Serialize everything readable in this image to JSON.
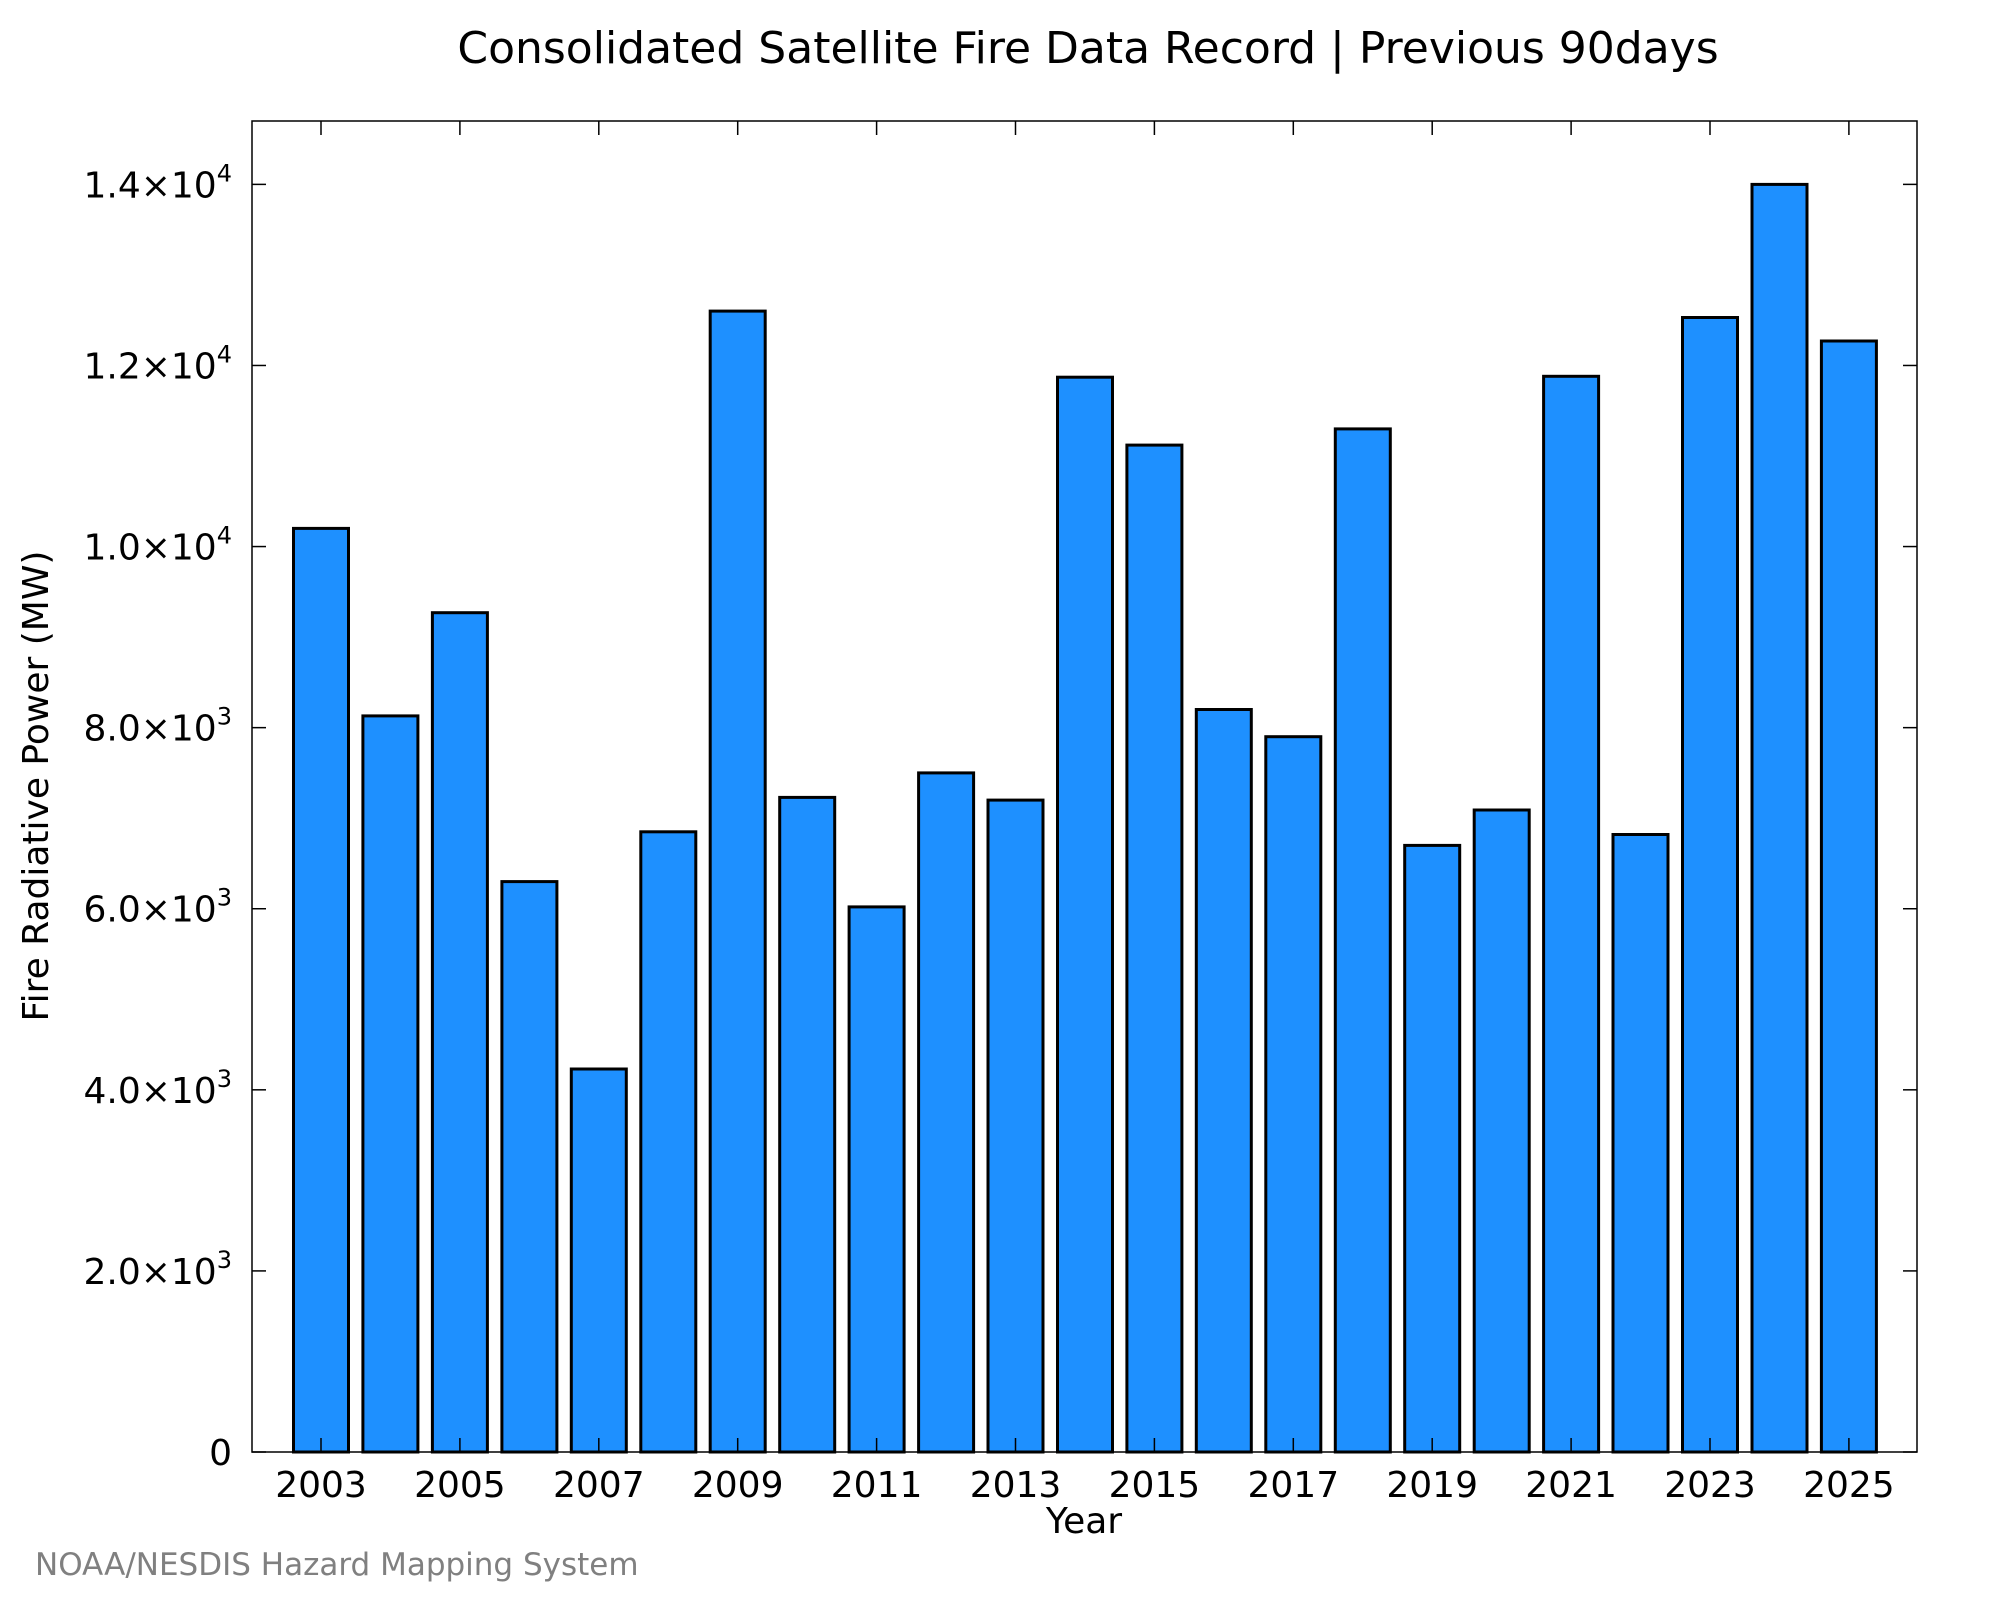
{
  "chart_data": {
    "type": "bar",
    "title": "Consolidated Satellite Fire Data Record | Previous 90days",
    "xlabel": "Year",
    "ylabel": "Fire Radiative Power (MW)",
    "categories": [
      "2003",
      "2004",
      "2005",
      "2006",
      "2007",
      "2008",
      "2009",
      "2010",
      "2011",
      "2012",
      "2013",
      "2014",
      "2015",
      "2016",
      "2017",
      "2018",
      "2019",
      "2020",
      "2021",
      "2022",
      "2023",
      "2024",
      "2025"
    ],
    "values": [
      10200,
      8130,
      9270,
      6300,
      4230,
      6850,
      12600,
      7230,
      6020,
      7500,
      7200,
      11870,
      11120,
      8200,
      7900,
      11300,
      6700,
      7090,
      11880,
      6820,
      12530,
      14000,
      12270
    ],
    "x_tick_labels": [
      "2003",
      "2005",
      "2007",
      "2009",
      "2011",
      "2013",
      "2015",
      "2017",
      "2019",
      "2021",
      "2023",
      "2025"
    ],
    "ylim": [
      0,
      14700
    ],
    "y_ticks": [
      {
        "value": 0,
        "mantissa": "0",
        "exponent": ""
      },
      {
        "value": 2000,
        "mantissa": "2.0×10",
        "exponent": "3"
      },
      {
        "value": 4000,
        "mantissa": "4.0×10",
        "exponent": "3"
      },
      {
        "value": 6000,
        "mantissa": "6.0×10",
        "exponent": "3"
      },
      {
        "value": 8000,
        "mantissa": "8.0×10",
        "exponent": "3"
      },
      {
        "value": 10000,
        "mantissa": "1.0×10",
        "exponent": "4"
      },
      {
        "value": 12000,
        "mantissa": "1.2×10",
        "exponent": "4"
      },
      {
        "value": 14000,
        "mantissa": "1.4×10",
        "exponent": "4"
      }
    ],
    "bar_color": "#1e90ff",
    "grid": false
  },
  "credit": "NOAA/NESDIS Hazard Mapping System"
}
